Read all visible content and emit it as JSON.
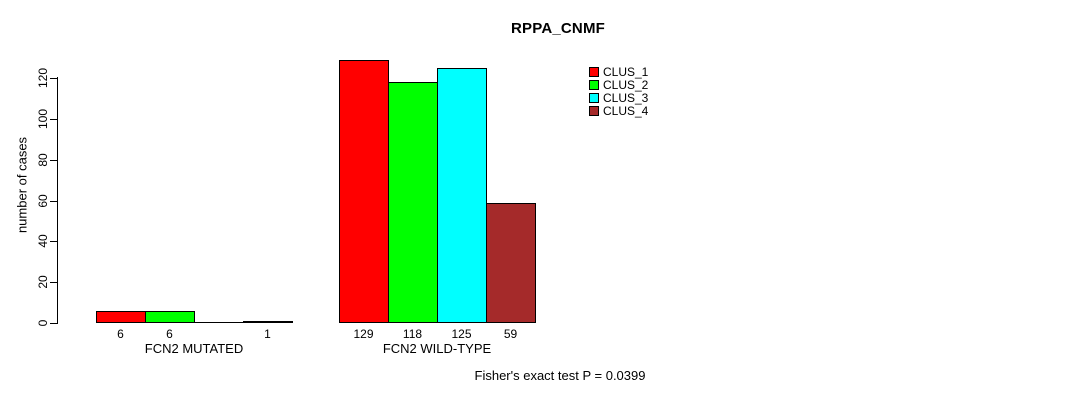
{
  "chart_data": {
    "type": "bar",
    "title": "RPPA_CNMF",
    "xlabel": "",
    "ylabel": "number of cases",
    "ylim": [
      0,
      130
    ],
    "yticks": [
      0,
      20,
      40,
      60,
      80,
      100,
      120
    ],
    "grid": false,
    "legend_position": "top-right",
    "categories": [
      "FCN2 MUTATED",
      "FCN2 WILD-TYPE"
    ],
    "series": [
      {
        "name": "CLUS_1",
        "color": "#FF0000",
        "values": [
          6,
          129
        ]
      },
      {
        "name": "CLUS_2",
        "color": "#00FF00",
        "values": [
          6,
          118
        ]
      },
      {
        "name": "CLUS_3",
        "color": "#00FFFF",
        "values": [
          0,
          125
        ]
      },
      {
        "name": "CLUS_4",
        "color": "#A52A2A",
        "values": [
          1,
          59
        ]
      }
    ],
    "bar_value_labels": [
      [
        "6",
        "6",
        "",
        "1"
      ],
      [
        "129",
        "118",
        "125",
        "59"
      ]
    ],
    "annotation": "Fisher's exact test P = 0.0399"
  },
  "colors": {
    "axis": "#000000",
    "text": "#000000",
    "background": "#FFFFFF"
  }
}
